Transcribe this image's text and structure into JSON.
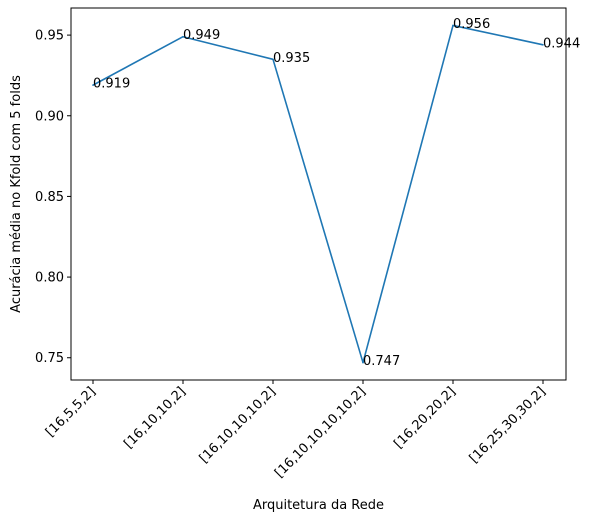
{
  "chart_data": {
    "type": "line",
    "title": "",
    "xlabel": "Arquitetura da Rede",
    "ylabel": "Acurácia média no Kfold com 5 folds",
    "categories": [
      "[16,5,5,2]",
      "[16,10,10,2]",
      "[16,10,10,10,2]",
      "[16,10,10,10,10,2]",
      "[16,20,20,2]",
      "[16,25,30,30,2]"
    ],
    "series": [
      {
        "values": [
          0.919,
          0.949,
          0.935,
          0.747,
          0.956,
          0.944
        ],
        "color": "#1f77b4"
      }
    ],
    "data_labels": [
      "0.919",
      "0.949",
      "0.935",
      "0.747",
      "0.956",
      "0.944"
    ],
    "ylim": [
      0.7362,
      0.9668
    ],
    "yticks": [
      0.75,
      0.8,
      0.85,
      0.9,
      0.95
    ],
    "ytick_labels": [
      "0.75",
      "0.80",
      "0.85",
      "0.90",
      "0.95"
    ],
    "grid": false,
    "legend": false
  }
}
